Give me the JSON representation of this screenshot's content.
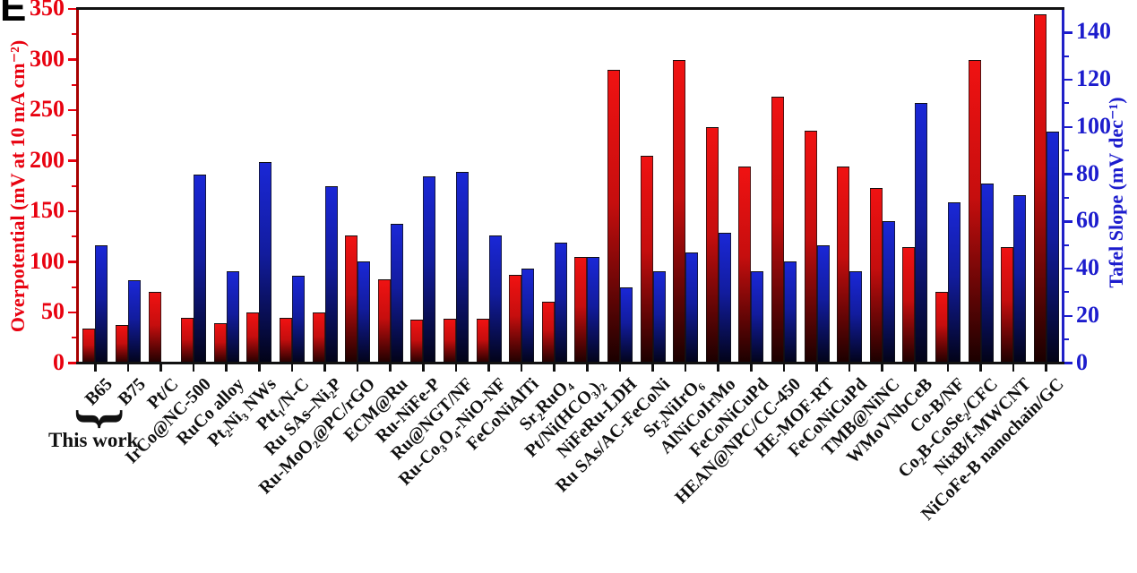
{
  "panel_label": "E",
  "annotation": {
    "brace_glyph": "}",
    "text": "This work",
    "applies_to": [
      "B65",
      "B75"
    ]
  },
  "axes": {
    "left": {
      "title": "Overpotential (mV at 10 mA cm⁻²)",
      "color": "#e80210",
      "spine_color": "#a80000",
      "major_ticks": [
        0,
        50,
        100,
        150,
        200,
        250,
        300,
        350
      ],
      "minor_step": 25
    },
    "right": {
      "title": "Tafel Slope (mV dec⁻¹)",
      "color": "#1c1ccd",
      "spine_color": "#2020c8",
      "major_ticks": [
        0,
        20,
        40,
        60,
        80,
        100,
        120,
        140
      ],
      "minor_step": 10
    },
    "bottom": {
      "tick_color": "#111111",
      "label_color": "#111111",
      "label_rotation_deg": 45
    }
  },
  "chart_data": {
    "type": "bar",
    "title": "",
    "xlabel": "",
    "grid": false,
    "legend": "none",
    "left_ylim": [
      0,
      350
    ],
    "right_ylim": [
      0,
      150
    ],
    "categories": [
      "B65",
      "B75",
      "Pt/C",
      "IrCo@NC-500",
      "RuCo alloy",
      "Pt₂Ni₃ NWs",
      "Ptt₁/N-C",
      "Ru SAs–Ni₂P",
      "Ru-MoO₂@PC/rGO",
      "ECM@Ru",
      "Ru-NiFe-P",
      "Ru@NGT/NF",
      "Ru-Co₃O₄-NiO-NF",
      "FeCoNiAlTi",
      "Sr₂RuO₄",
      "Pt/Ni(HCO₃)₂",
      "NiFeRu-LDH",
      "Ru SAs/AC-FeCoNi",
      "Sr₂NiIrO₆",
      "AlNiCoIrMo",
      "FeCoNiCuPd",
      "HEAN@NPC/CC-450",
      "HE-MOF-RT",
      "FeCoNiCuPd",
      "TMB@NiNC",
      "WMoVNbCeB",
      "Co-B/NF",
      "Co₂B-CoSe₂/CFC",
      "NixB/f-MWCNT",
      "NiCoFe-B nanochain/GC"
    ],
    "series": [
      {
        "name": "Overpotential",
        "axis": "left",
        "unit": "mV at 10 mA cm⁻²",
        "values": [
          34,
          38,
          70,
          45,
          39,
          50,
          45,
          50,
          126,
          83,
          43,
          44,
          44,
          87,
          61,
          105,
          290,
          205,
          300,
          233,
          194,
          263,
          230,
          194,
          173,
          115,
          70,
          300,
          115,
          345
        ],
        "bar_gradient": [
          "#f01212",
          "#c60e0e",
          "#570404",
          "#180000"
        ]
      },
      {
        "name": "Tafel Slope",
        "axis": "right",
        "unit": "mV dec⁻¹",
        "values": [
          50,
          35,
          null,
          80,
          39,
          85,
          37,
          75,
          43,
          59,
          79,
          81,
          54,
          40,
          51,
          45,
          32,
          39,
          47,
          55,
          39,
          43,
          50,
          39,
          60,
          110,
          68,
          76,
          71,
          98
        ],
        "bar_gradient": [
          "#1a27d6",
          "#121c9e",
          "#070c48",
          "#020214"
        ]
      }
    ]
  }
}
